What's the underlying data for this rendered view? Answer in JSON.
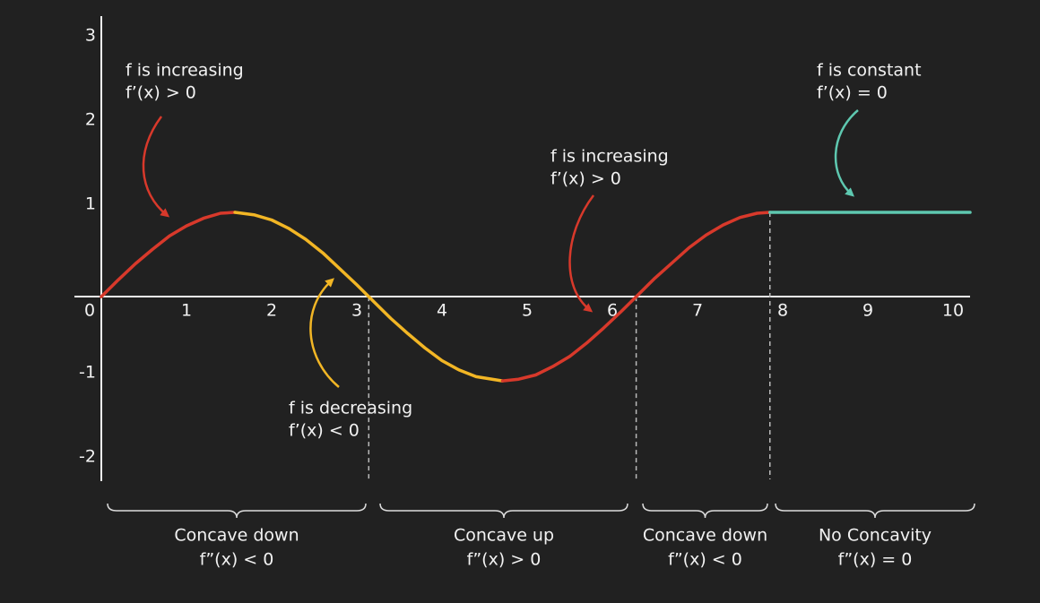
{
  "chart_data": {
    "type": "line",
    "xlim": [
      0,
      10.2
    ],
    "ylim": [
      -2.19,
      3.34
    ],
    "xticks": [
      0,
      1,
      2,
      3,
      4,
      5,
      6,
      7,
      8,
      9,
      10
    ],
    "yticks": [
      -2,
      -1,
      1,
      2,
      3
    ],
    "series": [
      {
        "color": "#d8392b",
        "x": [
          0,
          0.2,
          0.4,
          0.6,
          0.8,
          1.0,
          1.2,
          1.4,
          1.57
        ],
        "values": [
          0,
          0.2,
          0.39,
          0.56,
          0.72,
          0.84,
          0.93,
          0.99,
          1
        ]
      },
      {
        "color": "#f2b625",
        "x": [
          1.57,
          1.8,
          2.0,
          2.2,
          2.4,
          2.6,
          2.8,
          3.0,
          3.2,
          3.4,
          3.6,
          3.8,
          4.0,
          4.2,
          4.4,
          4.71
        ],
        "values": [
          1,
          0.97,
          0.91,
          0.81,
          0.68,
          0.52,
          0.33,
          0.14,
          -0.06,
          -0.26,
          -0.44,
          -0.61,
          -0.76,
          -0.87,
          -0.95,
          -1
        ]
      },
      {
        "color": "#d8392b",
        "x": [
          4.71,
          4.9,
          5.1,
          5.3,
          5.5,
          5.7,
          5.9,
          6.1,
          6.3,
          6.5,
          6.7,
          6.9,
          7.1,
          7.3,
          7.5,
          7.7,
          7.85
        ],
        "values": [
          -1,
          -0.98,
          -0.93,
          -0.83,
          -0.71,
          -0.55,
          -0.37,
          -0.18,
          0.02,
          0.22,
          0.4,
          0.58,
          0.73,
          0.85,
          0.94,
          0.99,
          1
        ]
      },
      {
        "color": "#5ec8b0",
        "x": [
          7.85,
          10.2
        ],
        "values": [
          1,
          1
        ]
      }
    ],
    "boundaries": [
      3.14,
      6.28,
      7.85
    ],
    "annotations": [
      {
        "color": "#d8392b",
        "lines": [
          "f is increasing",
          "f’(x) > 0"
        ]
      },
      {
        "color": "#f2b625",
        "lines": [
          "f is decreasing",
          "f’(x) < 0"
        ]
      },
      {
        "color": "#d8392b",
        "lines": [
          "f is increasing",
          "f’(x) > 0"
        ]
      },
      {
        "color": "#5ec8b0",
        "lines": [
          "f is constant",
          "f’(x) = 0"
        ]
      }
    ],
    "regions": [
      {
        "lines": [
          "Concave down",
          "f”(x) < 0"
        ]
      },
      {
        "lines": [
          "Concave up",
          "f”(x) > 0"
        ]
      },
      {
        "lines": [
          "Concave down",
          "f”(x) < 0"
        ]
      },
      {
        "lines": [
          "No Concavity",
          "f”(x) = 0"
        ]
      }
    ]
  }
}
